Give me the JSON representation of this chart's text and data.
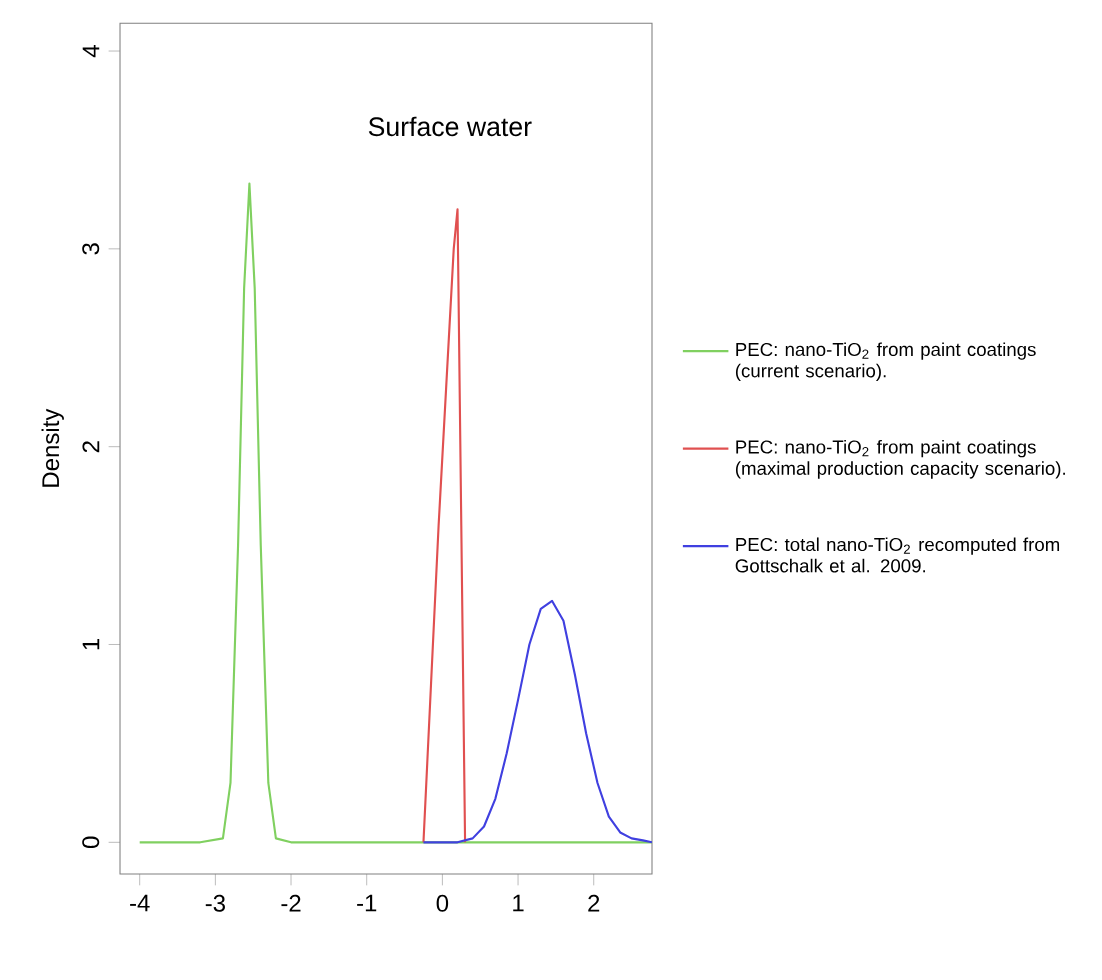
{
  "chart_data": {
    "type": "line",
    "title": "Surface water",
    "ylabel": "Density",
    "xlim": [
      -4.26,
      2.77
    ],
    "ylim": [
      -0.16,
      4.14
    ],
    "xticks": [
      -4,
      -3,
      -2,
      -1,
      0,
      1,
      2
    ],
    "yticks": [
      0,
      1,
      2,
      3,
      4
    ],
    "legend": "right",
    "marker": "none",
    "line_style": "solid",
    "series": [
      {
        "name": "PEC: nano-TiO$_{2}$ from paint coatings (current scenario).",
        "color": "#80d060",
        "x": [
          -4,
          -3.2,
          -2.9,
          -2.8,
          -2.7,
          -2.62,
          -2.55,
          -2.48,
          -2.4,
          -2.3,
          -2.2,
          -2.0,
          -1,
          0,
          1,
          2,
          2.77
        ],
        "values": [
          0,
          0,
          0.02,
          0.3,
          1.5,
          2.8,
          3.33,
          2.8,
          1.5,
          0.3,
          0.02,
          0,
          0,
          0,
          0,
          0,
          0
        ]
      },
      {
        "name": "PEC: nano-TiO$_{2}$ from paint coatings (maximal production capacity scenario).",
        "color": "#e05050",
        "x": [
          -0.25,
          -0.15,
          -0.05,
          0.05,
          0.15,
          0.2,
          0.25,
          0.3
        ],
        "values": [
          0,
          0.8,
          1.6,
          2.3,
          3.0,
          3.2,
          1.6,
          0
        ]
      },
      {
        "name": "PEC: total nano-TiO$_{2}$ recomputed from Gottschalk et al. 2009.",
        "color": "#4040e0",
        "x": [
          -0.25,
          0.2,
          0.4,
          0.55,
          0.7,
          0.85,
          1.0,
          1.15,
          1.3,
          1.45,
          1.6,
          1.75,
          1.9,
          2.05,
          2.2,
          2.35,
          2.5,
          2.65,
          2.77
        ],
        "values": [
          0,
          0,
          0.02,
          0.08,
          0.22,
          0.45,
          0.72,
          1.0,
          1.18,
          1.22,
          1.12,
          0.85,
          0.55,
          0.3,
          0.13,
          0.05,
          0.02,
          0.01,
          0
        ]
      }
    ]
  }
}
